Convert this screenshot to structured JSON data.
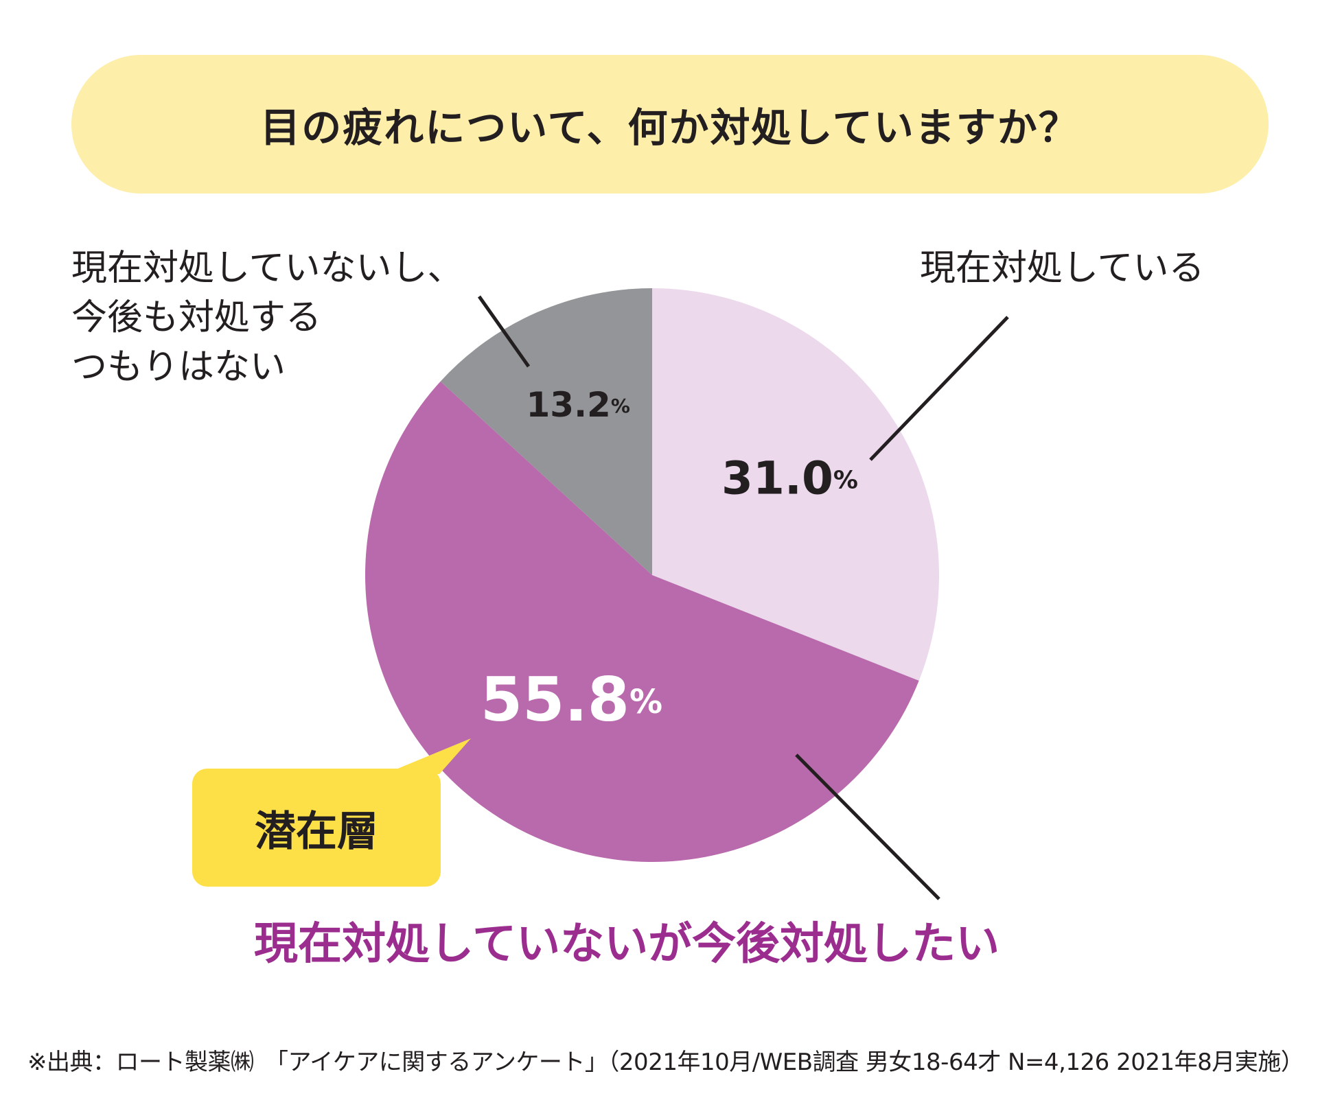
{
  "title": "目の疲れについて、何か対処していますか？",
  "colors": {
    "banner": "#fdeeaa",
    "bubble": "#fde047",
    "text": "#231f20",
    "accent_text": "#9b2d8f"
  },
  "chart_data": {
    "type": "pie",
    "start_angle_deg": 0,
    "direction": "clockwise",
    "slices": [
      {
        "label": "現在対処している",
        "value": 31.0,
        "display": "31.0",
        "color": "#ecd9ec",
        "value_color": "#231f20"
      },
      {
        "label": "現在対処していないが今後対処したい",
        "value": 55.8,
        "display": "55.8",
        "color": "#b96aac",
        "value_color": "#ffffff"
      },
      {
        "label": "現在対処していないし、今後も対処するつもりはない",
        "value": 13.2,
        "display": "13.2",
        "color": "#939598",
        "value_color": "#231f20"
      }
    ],
    "unit": "%"
  },
  "labels": {
    "current_lines": [
      "現在対処している"
    ],
    "never_lines": [
      "現在対処していないし、",
      "今後も対処する",
      "つもりはない"
    ],
    "want": "現在対処していないが今後対処したい"
  },
  "bubble": "潜在層",
  "footnote": "※出典：ロート製薬㈱　「アイケアに関するアンケート」（2021年10月/WEB調査 男女18-64才 N=4,126 2021年8月実施）"
}
